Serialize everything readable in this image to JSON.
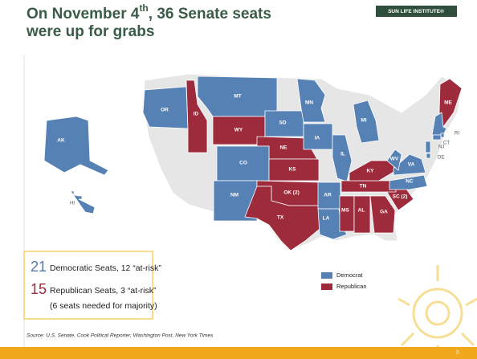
{
  "header": {
    "title_start": "On November 4",
    "title_sup": "th",
    "title_end": ", 36 Senate seats",
    "title_line2": "were up for grabs",
    "logo": "SUN LIFE INSTITUTE®"
  },
  "legend": [
    {
      "name": "Democrat",
      "color": "#5581b5"
    },
    {
      "name": "Republican",
      "color": "#9d2b3c"
    }
  ],
  "states": [
    {
      "label": "OR",
      "party": "Democrat"
    },
    {
      "label": "ID",
      "party": "Republican"
    },
    {
      "label": "MT",
      "party": "Democrat"
    },
    {
      "label": "WY",
      "party": "Republican"
    },
    {
      "label": "SD",
      "party": "Democrat"
    },
    {
      "label": "MN",
      "party": "Democrat"
    },
    {
      "label": "NE",
      "party": "Republican"
    },
    {
      "label": "CO",
      "party": "Democrat"
    },
    {
      "label": "KS",
      "party": "Republican"
    },
    {
      "label": "NM",
      "party": "Democrat"
    },
    {
      "label": "OK (2)",
      "party": "Republican"
    },
    {
      "label": "TX",
      "party": "Republican"
    },
    {
      "label": "IA",
      "party": "Democrat"
    },
    {
      "label": "IL",
      "party": "Democrat"
    },
    {
      "label": "AR",
      "party": "Democrat"
    },
    {
      "label": "LA",
      "party": "Democrat"
    },
    {
      "label": "MS",
      "party": "Republican"
    },
    {
      "label": "AL",
      "party": "Republican"
    },
    {
      "label": "GA",
      "party": "Republican"
    },
    {
      "label": "SC (2)",
      "party": "Republican"
    },
    {
      "label": "TN",
      "party": "Republican"
    },
    {
      "label": "KY",
      "party": "Republican"
    },
    {
      "label": "NC",
      "party": "Democrat"
    },
    {
      "label": "VA",
      "party": "Democrat"
    },
    {
      "label": "WV",
      "party": "Democrat"
    },
    {
      "label": "MI",
      "party": "Democrat"
    },
    {
      "label": "NJ",
      "party": "Democrat"
    },
    {
      "label": "DE",
      "party": "Democrat"
    },
    {
      "label": "ME",
      "party": "Republican"
    },
    {
      "label": null,
      "party": "Democrat"
    },
    {
      "label": "CT",
      "party": "Democrat"
    },
    {
      "label": "RI",
      "party": "Democrat"
    },
    {
      "label": "AK",
      "party": "Democrat"
    },
    {
      "label": "HI",
      "party": "Democrat"
    }
  ],
  "summary": {
    "dem_count": "21",
    "dem_text": "Democratic Seats, 12 “at-risk”",
    "rep_count": "15",
    "rep_text": "Republican Seats, 3 “at-risk”",
    "note": "(6 seats needed for majority)"
  },
  "source": "Source: U.S. Senate, Cook Political Reporter, Washington Post, New York Times",
  "page": "3"
}
